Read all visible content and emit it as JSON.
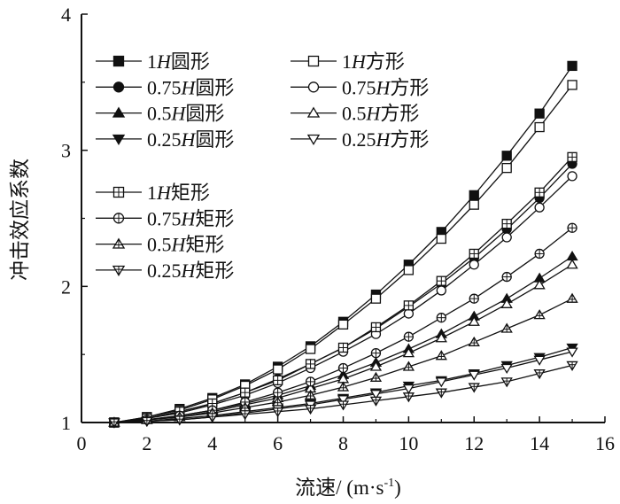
{
  "chart_data": {
    "type": "line",
    "title": "",
    "xlabel": "流速/ (m·s",
    "xlabel_sup": "-1",
    "xlabel_close": ")",
    "ylabel": "冲击效应系数",
    "xlim": [
      0,
      16
    ],
    "ylim": [
      1,
      4
    ],
    "xticks": [
      "0",
      "2",
      "4",
      "6",
      "8",
      "10",
      "12",
      "14",
      "16"
    ],
    "yticks": [
      "1",
      "2",
      "3",
      "4"
    ],
    "grid": false,
    "legend_position": "top-left",
    "x": [
      1,
      2,
      3,
      4,
      5,
      6,
      7,
      8,
      9,
      10,
      11,
      12,
      13,
      14,
      15
    ],
    "series": [
      {
        "name": "1H圆形",
        "prefix": "1",
        "suffix": "圆形",
        "marker": "square-filled",
        "values": [
          1.0,
          1.04,
          1.1,
          1.18,
          1.28,
          1.41,
          1.56,
          1.74,
          1.94,
          2.16,
          2.4,
          2.67,
          2.96,
          3.27,
          3.62
        ]
      },
      {
        "name": "1H方形",
        "prefix": "1",
        "suffix": "方形",
        "marker": "square-open",
        "values": [
          1.0,
          1.04,
          1.09,
          1.17,
          1.27,
          1.39,
          1.54,
          1.72,
          1.91,
          2.12,
          2.35,
          2.6,
          2.87,
          3.17,
          3.48
        ]
      },
      {
        "name": "0.75H圆形",
        "prefix": "0.75",
        "suffix": "圆形",
        "marker": "circle-filled",
        "values": [
          1.0,
          1.03,
          1.08,
          1.14,
          1.22,
          1.32,
          1.43,
          1.55,
          1.69,
          1.85,
          2.02,
          2.21,
          2.42,
          2.65,
          2.9
        ]
      },
      {
        "name": "0.75H方形",
        "prefix": "0.75",
        "suffix": "方形",
        "marker": "circle-open",
        "values": [
          1.0,
          1.03,
          1.07,
          1.13,
          1.2,
          1.29,
          1.4,
          1.52,
          1.65,
          1.8,
          1.97,
          2.16,
          2.36,
          2.58,
          2.81
        ]
      },
      {
        "name": "0.5H圆形",
        "prefix": "0.5",
        "suffix": "圆形",
        "marker": "triangle-up-filled",
        "values": [
          1.0,
          1.02,
          1.05,
          1.09,
          1.14,
          1.2,
          1.27,
          1.35,
          1.44,
          1.54,
          1.65,
          1.78,
          1.91,
          2.06,
          2.22
        ]
      },
      {
        "name": "0.5H方形",
        "prefix": "0.5",
        "suffix": "方形",
        "marker": "triangle-up-open",
        "values": [
          1.0,
          1.02,
          1.04,
          1.08,
          1.13,
          1.18,
          1.25,
          1.32,
          1.41,
          1.51,
          1.62,
          1.74,
          1.87,
          2.01,
          2.16
        ]
      },
      {
        "name": "0.25H圆形",
        "prefix": "0.25",
        "suffix": "圆形",
        "marker": "triangle-down-filled",
        "values": [
          1.0,
          1.01,
          1.03,
          1.05,
          1.08,
          1.11,
          1.14,
          1.18,
          1.22,
          1.27,
          1.31,
          1.36,
          1.42,
          1.48,
          1.55
        ]
      },
      {
        "name": "0.25H方形",
        "prefix": "0.25",
        "suffix": "方形",
        "marker": "triangle-down-open",
        "values": [
          1.0,
          1.01,
          1.02,
          1.04,
          1.07,
          1.1,
          1.13,
          1.17,
          1.21,
          1.25,
          1.3,
          1.35,
          1.4,
          1.46,
          1.52
        ]
      },
      {
        "name": "1H矩形",
        "prefix": "1",
        "suffix": "矩形",
        "marker": "square-cross",
        "values": [
          1.0,
          1.03,
          1.08,
          1.14,
          1.22,
          1.31,
          1.43,
          1.55,
          1.7,
          1.86,
          2.04,
          2.24,
          2.46,
          2.69,
          2.95
        ]
      },
      {
        "name": "0.75H矩形",
        "prefix": "0.75",
        "suffix": "矩形",
        "marker": "circle-cross",
        "values": [
          1.0,
          1.02,
          1.05,
          1.09,
          1.15,
          1.22,
          1.3,
          1.4,
          1.51,
          1.63,
          1.77,
          1.91,
          2.07,
          2.24,
          2.43
        ]
      },
      {
        "name": "0.5H矩形",
        "prefix": "0.5",
        "suffix": "矩形",
        "marker": "triangle-up-cross",
        "values": [
          1.0,
          1.02,
          1.04,
          1.07,
          1.11,
          1.15,
          1.2,
          1.26,
          1.33,
          1.41,
          1.49,
          1.59,
          1.69,
          1.79,
          1.91
        ]
      },
      {
        "name": "0.25H矩形",
        "prefix": "0.25",
        "suffix": "矩形",
        "marker": "triangle-down-cross",
        "values": [
          1.0,
          1.01,
          1.02,
          1.04,
          1.06,
          1.08,
          1.1,
          1.13,
          1.16,
          1.19,
          1.22,
          1.26,
          1.3,
          1.36,
          1.42
        ]
      }
    ]
  }
}
